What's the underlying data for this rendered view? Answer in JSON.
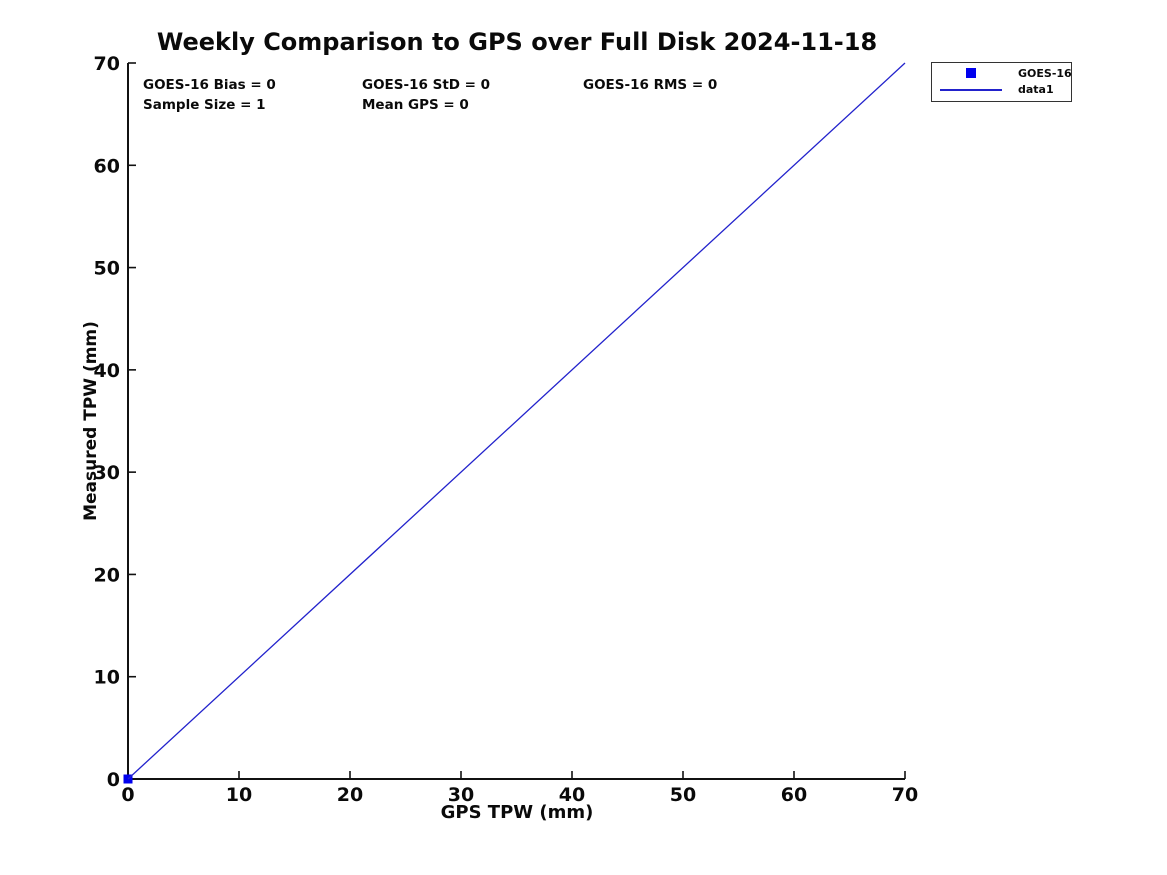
{
  "chart_data": {
    "type": "line",
    "title": "Weekly Comparison to GPS over Full Disk 2024-11-18",
    "xlabel": "GPS TPW (mm)",
    "ylabel": "Measured TPW (mm)",
    "xlim": [
      0,
      70
    ],
    "ylim": [
      0,
      70
    ],
    "xticks": [
      0,
      10,
      20,
      30,
      40,
      50,
      60,
      70
    ],
    "yticks": [
      0,
      10,
      20,
      30,
      40,
      50,
      60,
      70
    ],
    "grid": false,
    "annotations": [
      "GOES-16 Bias = 0",
      "GOES-16 StD = 0",
      "GOES-16 RMS = 0",
      "Sample Size = 1",
      "Mean GPS = 0"
    ],
    "series": [
      {
        "name": "GOES-16",
        "type": "scatter",
        "marker": "square",
        "color": "#0000ee",
        "points": [
          [
            0,
            0
          ]
        ]
      },
      {
        "name": "data1",
        "type": "line",
        "color": "#2222cc",
        "points": [
          [
            0,
            0
          ],
          [
            70,
            70
          ]
        ]
      }
    ],
    "legend": {
      "position": "top-right",
      "entries": [
        {
          "label": "GOES-16",
          "swatch": "square",
          "color": "#0000ee"
        },
        {
          "label": "data1",
          "swatch": "line",
          "color": "#2222cc"
        }
      ]
    },
    "colors": {
      "axis": "#111111",
      "text": "#0a0a0a",
      "background": "#ffffff"
    }
  }
}
